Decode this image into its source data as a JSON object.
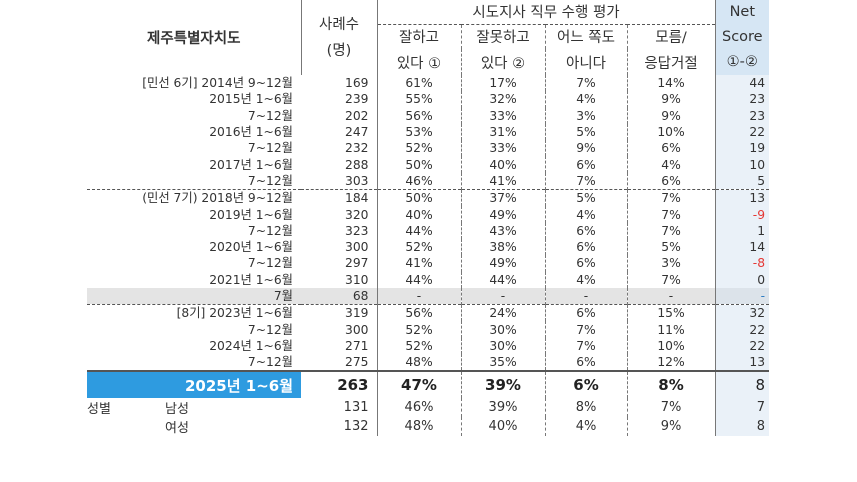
{
  "header": {
    "region": "제주특별자치도",
    "sample_line1": "사례수",
    "sample_line2": "(명)",
    "eval_title": "시도지사 직무 수행 평가",
    "cols": [
      {
        "l1": "잘하고",
        "l2": "있다 ①"
      },
      {
        "l1": "잘못하고",
        "l2": "있다 ②"
      },
      {
        "l1": "어느 쪽도",
        "l2": "아니다"
      },
      {
        "l1": "모름/",
        "l2": "응답거절"
      }
    ],
    "net_l1": "Net",
    "net_l2": "Score",
    "net_l3": "①-②"
  },
  "rows": [
    {
      "label": "[민선 6기] 2014년 9~12월",
      "n": "169",
      "good": "61%",
      "bad": "17%",
      "neither": "7%",
      "dk": "14%",
      "net": "44",
      "neg": false,
      "gray": false,
      "grp": false
    },
    {
      "label": "2015년 1~6월",
      "n": "239",
      "good": "55%",
      "bad": "32%",
      "neither": "4%",
      "dk": "9%",
      "net": "23",
      "neg": false,
      "gray": false,
      "grp": false
    },
    {
      "label": "7~12월",
      "n": "202",
      "good": "56%",
      "bad": "33%",
      "neither": "3%",
      "dk": "9%",
      "net": "23",
      "neg": false,
      "gray": false,
      "grp": false
    },
    {
      "label": "2016년 1~6월",
      "n": "247",
      "good": "53%",
      "bad": "31%",
      "neither": "5%",
      "dk": "10%",
      "net": "22",
      "neg": false,
      "gray": false,
      "grp": false
    },
    {
      "label": "7~12월",
      "n": "232",
      "good": "52%",
      "bad": "33%",
      "neither": "9%",
      "dk": "6%",
      "net": "19",
      "neg": false,
      "gray": false,
      "grp": false
    },
    {
      "label": "2017년 1~6월",
      "n": "288",
      "good": "50%",
      "bad": "40%",
      "neither": "6%",
      "dk": "4%",
      "net": "10",
      "neg": false,
      "gray": false,
      "grp": false
    },
    {
      "label": "7~12월",
      "n": "303",
      "good": "46%",
      "bad": "41%",
      "neither": "7%",
      "dk": "6%",
      "net": "5",
      "neg": false,
      "gray": false,
      "grp": false
    },
    {
      "label": "(민선 7기) 2018년 9~12월",
      "n": "184",
      "good": "50%",
      "bad": "37%",
      "neither": "5%",
      "dk": "7%",
      "net": "13",
      "neg": false,
      "gray": false,
      "grp": true
    },
    {
      "label": "2019년 1~6월",
      "n": "320",
      "good": "40%",
      "bad": "49%",
      "neither": "4%",
      "dk": "7%",
      "net": "-9",
      "neg": true,
      "gray": false,
      "grp": false
    },
    {
      "label": "7~12월",
      "n": "323",
      "good": "44%",
      "bad": "43%",
      "neither": "6%",
      "dk": "7%",
      "net": "1",
      "neg": false,
      "gray": false,
      "grp": false
    },
    {
      "label": "2020년 1~6월",
      "n": "300",
      "good": "52%",
      "bad": "38%",
      "neither": "6%",
      "dk": "5%",
      "net": "14",
      "neg": false,
      "gray": false,
      "grp": false
    },
    {
      "label": "7~12월",
      "n": "297",
      "good": "41%",
      "bad": "49%",
      "neither": "6%",
      "dk": "3%",
      "net": "-8",
      "neg": true,
      "gray": false,
      "grp": false
    },
    {
      "label": "2021년 1~6월",
      "n": "310",
      "good": "44%",
      "bad": "44%",
      "neither": "4%",
      "dk": "7%",
      "net": "0",
      "neg": false,
      "gray": false,
      "grp": false
    },
    {
      "label": "7월",
      "n": "68",
      "good": "-",
      "bad": "-",
      "neither": "-",
      "dk": "-",
      "net": "-",
      "neg": false,
      "gray": true,
      "grp": false
    },
    {
      "label": "[8기] 2023년 1~6월",
      "n": "319",
      "good": "56%",
      "bad": "24%",
      "neither": "6%",
      "dk": "15%",
      "net": "32",
      "neg": false,
      "gray": false,
      "grp": true
    },
    {
      "label": "7~12월",
      "n": "300",
      "good": "52%",
      "bad": "30%",
      "neither": "7%",
      "dk": "11%",
      "net": "22",
      "neg": false,
      "gray": false,
      "grp": false
    },
    {
      "label": "2024년 1~6월",
      "n": "271",
      "good": "52%",
      "bad": "30%",
      "neither": "7%",
      "dk": "10%",
      "net": "22",
      "neg": false,
      "gray": false,
      "grp": false
    },
    {
      "label": "7~12월",
      "n": "275",
      "good": "48%",
      "bad": "35%",
      "neither": "6%",
      "dk": "12%",
      "net": "13",
      "neg": false,
      "gray": false,
      "grp": false
    }
  ],
  "highlight": {
    "label": "2025년 1~6월",
    "n": "263",
    "good": "47%",
    "bad": "39%",
    "neither": "6%",
    "dk": "8%",
    "net": "8"
  },
  "gender": {
    "group_label": "성별",
    "rows": [
      {
        "label": "남성",
        "n": "131",
        "good": "46%",
        "bad": "39%",
        "neither": "8%",
        "dk": "7%",
        "net": "7"
      },
      {
        "label": "여성",
        "n": "132",
        "good": "48%",
        "bad": "40%",
        "neither": "4%",
        "dk": "9%",
        "net": "8"
      }
    ]
  },
  "colors": {
    "region_blue": "#2E9BE0",
    "net_blue": "#2E7DC3",
    "net_negative": "#E53935",
    "net_bg": "#D6E6F4",
    "gray_row": "#E4E4E4"
  }
}
